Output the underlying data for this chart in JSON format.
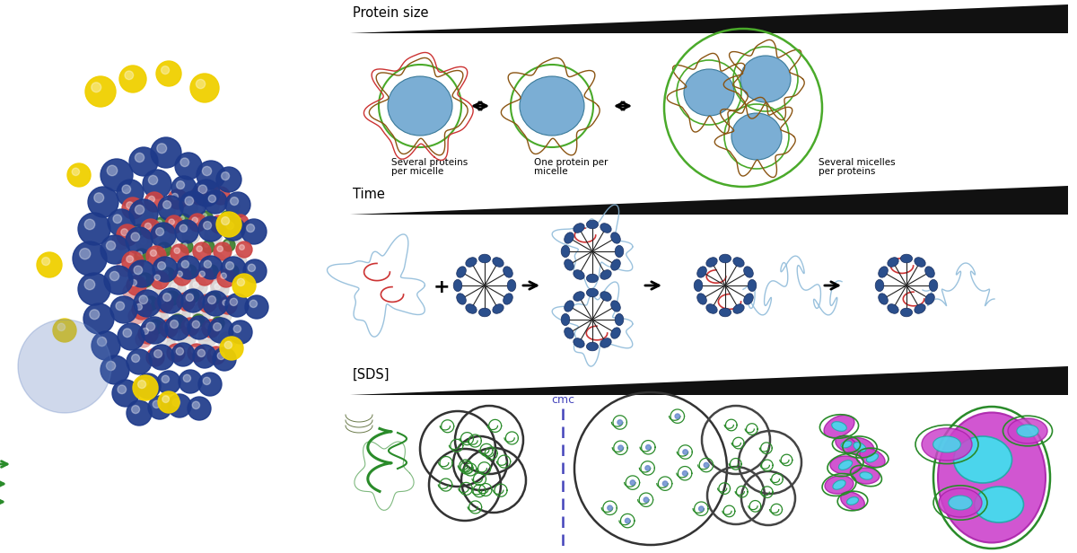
{
  "fig_width": 12.0,
  "fig_height": 6.16,
  "bg_color": "#ffffff",
  "sphere_blue": "#1e3a8a",
  "sphere_yellow": "#f0d000",
  "sphere_red": "#cc4444",
  "sphere_white": "#d8d8d8",
  "sphere_green": "#3a7a2a",
  "sphere_pink": "#e0a0a0",
  "sphere_lightblue": "#6080c0",
  "micelle_blue_fill": "#7baed4",
  "micelle_blue_dark": "#2b4f8c",
  "micelle_green_line": "#4aaa2a",
  "protein_red": "#cc3333",
  "protein_brown": "#8B5513",
  "protein_blue_light": "#8ab8d8",
  "protein_green": "#2a8b2a",
  "sds_micelle_gray": "#555555",
  "magenta_fill": "#cc44cc",
  "cyan_fill": "#44ddee",
  "tri_color": "#111111",
  "label_panel1": "Protein size",
  "label_panel2": "Time",
  "label_panel3": "[SDS]",
  "label_cmc": "cmc",
  "label1a": "Several proteins",
  "label1b": "per micelle",
  "label2a": "One protein per",
  "label2b": "micelle",
  "label3a": "Several micelles",
  "label3b": "per proteins"
}
